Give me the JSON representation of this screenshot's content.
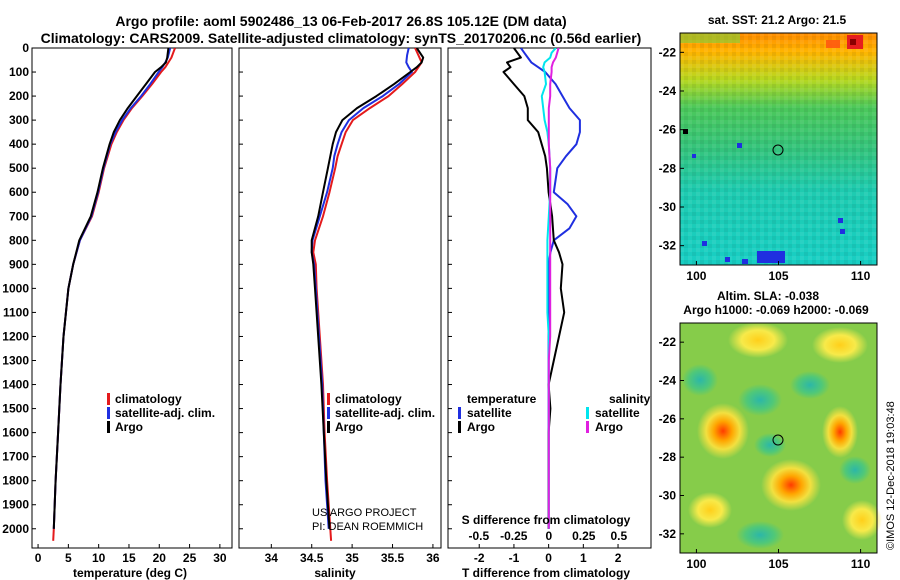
{
  "header": {
    "title_line1": "Argo profile: aoml 5902486_13 06-Feb-2017 26.8S 105.12E (DM data)",
    "title_line2": "Climatology: CARS2009. Satellite-adjusted climatology: synTS_20170206.nc (0.56d earlier)"
  },
  "colors": {
    "climatology": "#e41a1c",
    "satellite": "#1f2fe0",
    "argo": "#000000",
    "sal_satellite": "#00e5ee",
    "sal_argo": "#e020e0"
  },
  "chart_data": [
    {
      "type": "line",
      "id": "temperature",
      "xlabel": "temperature (deg C)",
      "xlim": [
        -1,
        32
      ],
      "ylim": [
        2080,
        0
      ],
      "xticks": [
        "0",
        "5",
        "10",
        "15",
        "20",
        "25",
        "30"
      ],
      "yticks": [
        "0",
        "100",
        "200",
        "300",
        "400",
        "500",
        "600",
        "700",
        "800",
        "900",
        "1000",
        "1100",
        "1200",
        "1300",
        "1400",
        "1500",
        "1600",
        "1700",
        "1800",
        "1900",
        "2000"
      ],
      "legend": [
        "climatology",
        "satellite-adj. clim.",
        "Argo"
      ],
      "series": [
        {
          "name": "climatology",
          "depth": [
            0,
            20,
            40,
            60,
            80,
            100,
            150,
            200,
            250,
            300,
            350,
            400,
            500,
            600,
            700,
            800,
            900,
            1000,
            1200,
            1400,
            1600,
            1800,
            2000,
            2050
          ],
          "values": [
            22.6,
            22.3,
            22.0,
            21.5,
            21.0,
            20.3,
            18.8,
            17.2,
            15.5,
            14.1,
            13.0,
            12.1,
            10.9,
            10.0,
            8.9,
            6.9,
            5.8,
            5.0,
            4.2,
            3.7,
            3.3,
            2.9,
            2.6,
            2.5
          ]
        },
        {
          "name": "satellite-adj. clim.",
          "depth": [
            0,
            20,
            40,
            60,
            80,
            100,
            150,
            200,
            250,
            300,
            350,
            400,
            500,
            600,
            700,
            800,
            900,
            1000,
            1200,
            1400,
            1600,
            1800,
            2000
          ],
          "values": [
            21.8,
            21.6,
            21.4,
            21.0,
            20.5,
            19.9,
            18.5,
            17.0,
            15.3,
            13.9,
            12.8,
            11.9,
            10.8,
            9.9,
            8.8,
            6.9,
            5.8,
            5.0,
            4.2,
            3.7,
            3.3,
            2.9,
            2.6
          ]
        },
        {
          "name": "Argo",
          "depth": [
            0,
            20,
            40,
            60,
            80,
            100,
            150,
            200,
            250,
            300,
            350,
            400,
            500,
            600,
            700,
            800,
            900,
            1000,
            1200,
            1400,
            1600,
            1800,
            2000
          ],
          "values": [
            21.5,
            21.4,
            21.3,
            21.1,
            20.3,
            19.3,
            17.8,
            16.3,
            14.8,
            13.5,
            12.5,
            11.8,
            10.7,
            9.8,
            8.7,
            6.8,
            5.8,
            5.0,
            4.2,
            3.7,
            3.3,
            2.9,
            2.6
          ]
        }
      ]
    },
    {
      "type": "line",
      "id": "salinity",
      "xlabel": "salinity",
      "xlim": [
        33.6,
        36.1
      ],
      "ylim": [
        2080,
        0
      ],
      "xticks": [
        "34",
        "34.5",
        "35",
        "35.5",
        "36"
      ],
      "legend": [
        "climatology",
        "satellite-adj. clim.",
        "Argo"
      ],
      "series": [
        {
          "name": "climatology",
          "depth": [
            0,
            30,
            60,
            80,
            100,
            150,
            200,
            250,
            300,
            350,
            400,
            450,
            500,
            600,
            700,
            800,
            850,
            900,
            1000,
            1200,
            1400,
            1600,
            1800,
            2000,
            2050
          ],
          "values": [
            35.78,
            35.82,
            35.86,
            35.82,
            35.78,
            35.62,
            35.45,
            35.22,
            35.01,
            34.92,
            34.87,
            34.82,
            34.79,
            34.72,
            34.64,
            34.54,
            34.52,
            34.55,
            34.56,
            34.6,
            34.64,
            34.66,
            34.69,
            34.73,
            34.74
          ]
        },
        {
          "name": "satellite-adj. clim.",
          "depth": [
            0,
            30,
            60,
            80,
            100,
            150,
            200,
            250,
            300,
            350,
            400,
            450,
            500,
            600,
            700,
            800,
            850,
            900,
            1000,
            1200,
            1400,
            1600,
            1800,
            2000
          ],
          "values": [
            35.7,
            35.68,
            35.67,
            35.7,
            35.74,
            35.58,
            35.38,
            35.14,
            34.96,
            34.87,
            34.82,
            34.78,
            34.76,
            34.69,
            34.6,
            34.51,
            34.5,
            34.53,
            34.55,
            34.59,
            34.63,
            34.65,
            34.67,
            34.71
          ]
        },
        {
          "name": "Argo",
          "depth": [
            0,
            20,
            40,
            60,
            80,
            100,
            150,
            200,
            250,
            300,
            350,
            400,
            450,
            500,
            600,
            700,
            800,
            850,
            900,
            1000,
            1200,
            1400,
            1600,
            1800,
            2000
          ],
          "values": [
            35.8,
            35.84,
            35.88,
            35.86,
            35.8,
            35.72,
            35.52,
            35.3,
            35.06,
            34.88,
            34.8,
            34.76,
            34.73,
            34.7,
            34.64,
            34.58,
            34.5,
            34.5,
            34.52,
            34.54,
            34.58,
            34.62,
            34.65,
            34.68,
            34.72
          ]
        }
      ]
    },
    {
      "type": "line",
      "id": "difference",
      "xlabel": "T difference from climatology",
      "xlabel_top": "S difference from climatology",
      "xlim": [
        -2.9,
        2.95
      ],
      "ylim": [
        2080,
        0
      ],
      "xticks": [
        "-2",
        "-1",
        "0",
        "1",
        "2"
      ],
      "xticks_top": [
        "-0.5",
        "-0.25",
        "0",
        "0.25",
        "0.5"
      ],
      "legend_temperature_title": "temperature",
      "legend_salinity_title": "salinity",
      "legend_temperature": [
        "satellite",
        "Argo"
      ],
      "legend_salinity": [
        "satellite",
        "Argo"
      ],
      "series": [
        {
          "name": "T satellite",
          "depth": [
            0,
            20,
            40,
            60,
            80,
            100,
            150,
            200,
            250,
            300,
            350,
            400,
            450,
            500,
            600,
            650,
            700,
            750,
            800,
            850,
            900,
            1000,
            1100,
            1200,
            1400,
            1600,
            1800,
            2000
          ],
          "values": [
            -0.8,
            -0.7,
            -0.6,
            -0.5,
            -0.3,
            -0.1,
            0.2,
            0.4,
            0.6,
            0.9,
            0.9,
            0.8,
            0.5,
            0.25,
            0.15,
            0.55,
            0.8,
            0.6,
            0.15,
            0.05,
            0.0,
            0.0,
            0.0,
            0.0,
            0.0,
            0.0,
            0.0,
            0.0
          ]
        },
        {
          "name": "T Argo",
          "depth": [
            0,
            20,
            40,
            60,
            80,
            100,
            150,
            200,
            250,
            300,
            350,
            400,
            450,
            500,
            600,
            700,
            800,
            850,
            900,
            1000,
            1100,
            1200,
            1300,
            1400,
            1500,
            1600,
            1800,
            2000
          ],
          "values": [
            -1.0,
            -0.9,
            -0.8,
            -1.2,
            -1.1,
            -1.3,
            -1.0,
            -0.7,
            -0.6,
            -0.6,
            -0.3,
            -0.2,
            -0.1,
            -0.05,
            0.0,
            0.1,
            0.15,
            0.3,
            0.4,
            0.35,
            0.45,
            0.3,
            0.15,
            0.0,
            0.05,
            0.0,
            0.0,
            0.0
          ]
        },
        {
          "name": "S satellite",
          "depth": [
            0,
            20,
            40,
            60,
            80,
            100,
            150,
            200,
            250,
            300,
            350,
            400,
            500,
            600,
            700,
            800,
            900,
            1000,
            1100,
            1200,
            1300,
            1400,
            1600,
            1800,
            2000
          ],
          "values": [
            0.05,
            0.02,
            0.01,
            -0.03,
            -0.04,
            -0.03,
            -0.02,
            -0.05,
            -0.04,
            -0.03,
            -0.01,
            0.0,
            0.01,
            0.01,
            0.0,
            -0.01,
            -0.01,
            -0.01,
            -0.01,
            0.0,
            0.0,
            0.0,
            0.0,
            0.0,
            0.0
          ]
        },
        {
          "name": "S Argo",
          "depth": [
            0,
            20,
            40,
            60,
            80,
            100,
            150,
            200,
            250,
            300,
            350,
            400,
            500,
            600,
            700,
            800,
            900,
            1000,
            1100,
            1200,
            1300,
            1400,
            1600,
            1800,
            2000
          ],
          "values": [
            0.07,
            0.06,
            0.05,
            0.03,
            0.02,
            0.02,
            0.01,
            0.01,
            0.0,
            0.0,
            0.0,
            0.0,
            0.01,
            0.01,
            0.01,
            0.01,
            0.01,
            0.01,
            0.01,
            0.01,
            0.0,
            0.0,
            0.0,
            0.0,
            0.0
          ]
        }
      ]
    },
    {
      "type": "heatmap",
      "id": "sst_map",
      "title": "sat. SST: 21.2 Argo: 21.5",
      "xlim": [
        99,
        111
      ],
      "ylim": [
        -33,
        -21
      ],
      "xticks": [
        "100",
        "105",
        "110"
      ],
      "yticks": [
        "-22",
        "-24",
        "-26",
        "-28",
        "-30",
        "-32"
      ],
      "marker": {
        "lon": 105.12,
        "lat": -26.8
      }
    },
    {
      "type": "heatmap",
      "id": "sla_map",
      "title_line1": "Altim. SLA: -0.038",
      "title_line2": "Argo h1000: -0.069 h2000: -0.069",
      "xlim": [
        99,
        111
      ],
      "ylim": [
        -33,
        -21
      ],
      "xticks": [
        "100",
        "105",
        "110"
      ],
      "yticks": [
        "-22",
        "-24",
        "-26",
        "-28",
        "-30",
        "-32"
      ],
      "marker": {
        "lon": 105.12,
        "lat": -26.8
      }
    }
  ],
  "credits": {
    "project": "US ARGO PROJECT",
    "pi": "PI: DEAN ROEMMICH",
    "stamp": "©IMOS 12-Dec-2018 19:03:48"
  }
}
